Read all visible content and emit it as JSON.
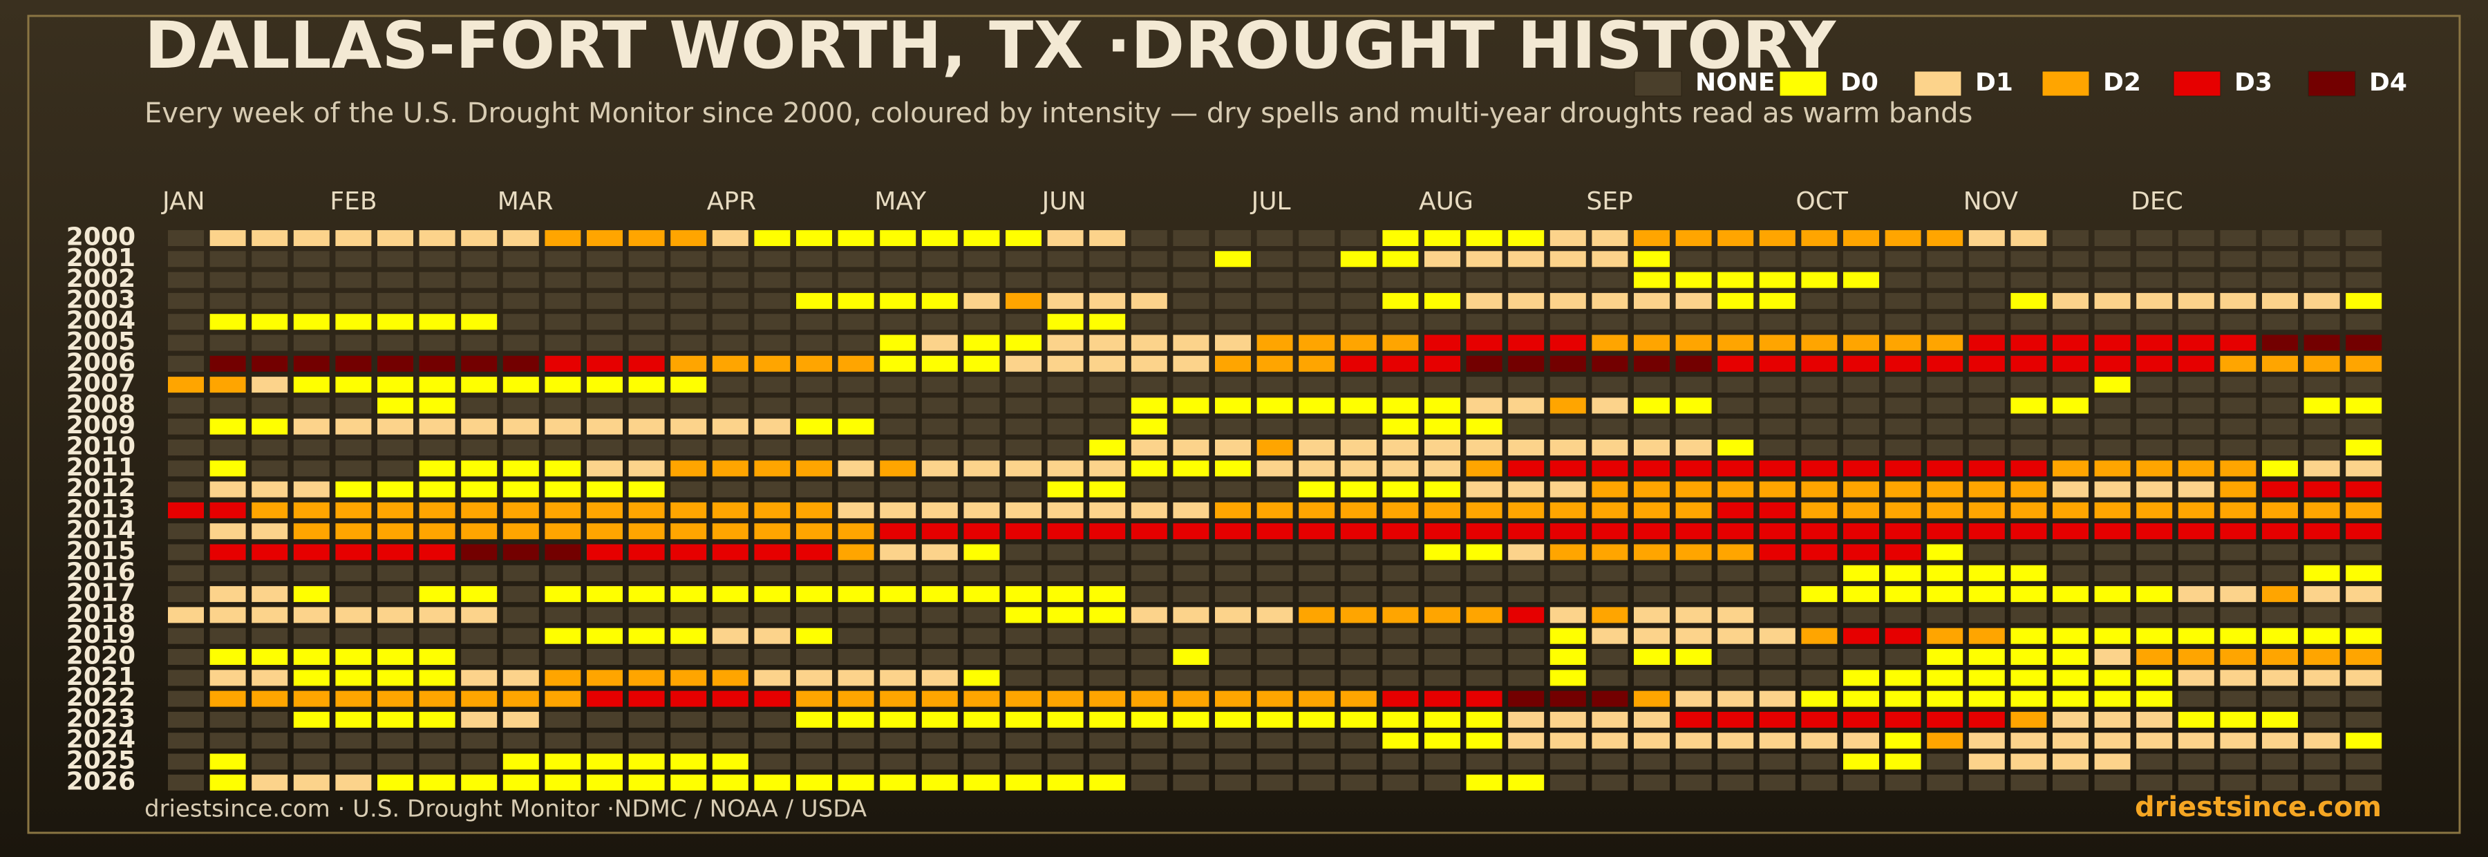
{
  "chart_data": {
    "type": "heatmap",
    "title": "DALLAS-FORT WORTH, TX ·DROUGHT HISTORY",
    "subtitle": "Every week of the U.S. Drought Monitor since 2000, coloured by intensity — dry spells and multi-year droughts read as warm bands",
    "source": "driestsince.com  · U.S. Drought Monitor ·NDMC / NOAA / USDA",
    "brand": "driestsince.com",
    "levels": [
      {
        "name": "NONE",
        "color": "#4a3f2b"
      },
      {
        "name": "D0",
        "color": "#ffff00"
      },
      {
        "name": "D1",
        "color": "#fcd38b"
      },
      {
        "name": "D2",
        "color": "#ffa500"
      },
      {
        "name": "D3",
        "color": "#e60000"
      },
      {
        "name": "D4",
        "color": "#730000"
      }
    ],
    "x_categories": [
      "JAN",
      null,
      null,
      null,
      "FEB",
      null,
      null,
      null,
      "MAR",
      null,
      null,
      null,
      null,
      "APR",
      null,
      null,
      null,
      "MAY",
      null,
      null,
      null,
      "JUN",
      null,
      null,
      null,
      null,
      "JUL",
      null,
      null,
      null,
      "AUG",
      null,
      null,
      null,
      "SEP",
      null,
      null,
      null,
      null,
      "OCT",
      null,
      null,
      null,
      "NOV",
      null,
      null,
      null,
      "DEC",
      null,
      null,
      null,
      null,
      null
    ],
    "y_categories": [
      "2000",
      "2001",
      "2002",
      "2003",
      "2004",
      "2005",
      "2006",
      "2007",
      "2008",
      "2009",
      "2010",
      "2011",
      "2012",
      "2013",
      "2014",
      "2015",
      "2016",
      "2017",
      "2018",
      "2019",
      "2020",
      "2021",
      "2022",
      "2023",
      "2024",
      "2025",
      "2026"
    ],
    "values": [
      [
        0,
        2,
        2,
        2,
        2,
        2,
        2,
        2,
        2,
        3,
        3,
        3,
        3,
        2,
        1,
        1,
        1,
        1,
        1,
        1,
        1,
        2,
        2,
        0,
        0,
        0,
        0,
        0,
        0,
        1,
        1,
        1,
        1,
        2,
        2,
        3,
        3,
        3,
        3,
        3,
        3,
        3,
        3,
        2,
        2,
        0,
        0,
        0,
        0,
        0,
        0,
        0,
        0
      ],
      [
        0,
        0,
        0,
        0,
        0,
        0,
        0,
        0,
        0,
        0,
        0,
        0,
        0,
        0,
        0,
        0,
        0,
        0,
        0,
        0,
        0,
        0,
        0,
        0,
        0,
        1,
        0,
        0,
        1,
        1,
        2,
        2,
        2,
        2,
        2,
        1,
        0,
        0,
        0,
        0,
        0,
        0,
        0,
        0,
        0,
        0,
        0,
        0,
        0,
        0,
        0,
        0,
        0
      ],
      [
        0,
        0,
        0,
        0,
        0,
        0,
        0,
        0,
        0,
        0,
        0,
        0,
        0,
        0,
        0,
        0,
        0,
        0,
        0,
        0,
        0,
        0,
        0,
        0,
        0,
        0,
        0,
        0,
        0,
        0,
        0,
        0,
        0,
        0,
        0,
        1,
        1,
        1,
        1,
        1,
        1,
        0,
        0,
        0,
        0,
        0,
        0,
        0,
        0,
        0,
        0,
        0,
        0
      ],
      [
        0,
        0,
        0,
        0,
        0,
        0,
        0,
        0,
        0,
        0,
        0,
        0,
        0,
        0,
        0,
        1,
        1,
        1,
        1,
        2,
        3,
        2,
        2,
        2,
        0,
        0,
        0,
        0,
        0,
        1,
        1,
        2,
        2,
        2,
        2,
        2,
        2,
        1,
        1,
        0,
        0,
        0,
        0,
        0,
        1,
        2,
        2,
        2,
        2,
        2,
        2,
        2,
        1
      ],
      [
        0,
        1,
        1,
        1,
        1,
        1,
        1,
        1,
        0,
        0,
        0,
        0,
        0,
        0,
        0,
        0,
        0,
        0,
        0,
        0,
        0,
        1,
        1,
        0,
        0,
        0,
        0,
        0,
        0,
        0,
        0,
        0,
        0,
        0,
        0,
        0,
        0,
        0,
        0,
        0,
        0,
        0,
        0,
        0,
        0,
        0,
        0,
        0,
        0,
        0,
        0,
        0,
        0
      ],
      [
        0,
        0,
        0,
        0,
        0,
        0,
        0,
        0,
        0,
        0,
        0,
        0,
        0,
        0,
        0,
        0,
        0,
        1,
        2,
        1,
        1,
        2,
        2,
        2,
        2,
        2,
        3,
        3,
        3,
        3,
        4,
        4,
        4,
        4,
        3,
        3,
        3,
        3,
        3,
        3,
        3,
        3,
        3,
        4,
        4,
        4,
        4,
        4,
        4,
        4,
        5,
        5,
        5
      ],
      [
        0,
        5,
        5,
        5,
        5,
        5,
        5,
        5,
        5,
        4,
        4,
        4,
        3,
        3,
        3,
        3,
        3,
        1,
        1,
        1,
        2,
        2,
        2,
        2,
        2,
        3,
        3,
        3,
        4,
        4,
        4,
        5,
        5,
        5,
        5,
        5,
        5,
        4,
        4,
        4,
        4,
        4,
        4,
        4,
        4,
        4,
        4,
        4,
        4,
        3,
        3,
        3,
        3
      ],
      [
        3,
        3,
        2,
        1,
        1,
        1,
        1,
        1,
        1,
        1,
        1,
        1,
        1,
        0,
        0,
        0,
        0,
        0,
        0,
        0,
        0,
        0,
        0,
        0,
        0,
        0,
        0,
        0,
        0,
        0,
        0,
        0,
        0,
        0,
        0,
        0,
        0,
        0,
        0,
        0,
        0,
        0,
        0,
        0,
        0,
        0,
        1,
        0,
        0,
        0,
        0,
        0,
        0
      ],
      [
        0,
        0,
        0,
        0,
        0,
        1,
        1,
        0,
        0,
        0,
        0,
        0,
        0,
        0,
        0,
        0,
        0,
        0,
        0,
        0,
        0,
        0,
        0,
        1,
        1,
        1,
        1,
        1,
        1,
        1,
        1,
        2,
        2,
        3,
        2,
        1,
        1,
        0,
        0,
        0,
        0,
        0,
        0,
        0,
        1,
        1,
        0,
        0,
        0,
        0,
        0,
        1,
        1
      ],
      [
        0,
        1,
        1,
        2,
        2,
        2,
        2,
        2,
        2,
        2,
        2,
        2,
        2,
        2,
        2,
        1,
        1,
        0,
        0,
        0,
        0,
        0,
        0,
        1,
        0,
        0,
        0,
        0,
        0,
        1,
        1,
        1,
        0,
        0,
        0,
        0,
        0,
        0,
        0,
        0,
        0,
        0,
        0,
        0,
        0,
        0,
        0,
        0,
        0,
        0,
        0,
        0,
        0
      ],
      [
        0,
        0,
        0,
        0,
        0,
        0,
        0,
        0,
        0,
        0,
        0,
        0,
        0,
        0,
        0,
        0,
        0,
        0,
        0,
        0,
        0,
        0,
        1,
        2,
        2,
        2,
        3,
        2,
        2,
        2,
        2,
        2,
        2,
        2,
        2,
        2,
        2,
        1,
        0,
        0,
        0,
        0,
        0,
        0,
        0,
        0,
        0,
        0,
        0,
        0,
        0,
        0,
        1
      ],
      [
        0,
        1,
        0,
        0,
        0,
        0,
        1,
        1,
        1,
        1,
        2,
        2,
        3,
        3,
        3,
        3,
        2,
        3,
        2,
        2,
        2,
        2,
        2,
        1,
        1,
        1,
        2,
        2,
        2,
        2,
        2,
        3,
        4,
        4,
        4,
        4,
        4,
        4,
        4,
        4,
        4,
        4,
        4,
        4,
        4,
        3,
        3,
        3,
        3,
        3,
        1,
        2,
        2
      ],
      [
        0,
        2,
        2,
        2,
        1,
        1,
        1,
        1,
        1,
        1,
        1,
        1,
        0,
        0,
        0,
        0,
        0,
        0,
        0,
        0,
        0,
        1,
        1,
        0,
        0,
        0,
        0,
        1,
        1,
        1,
        1,
        2,
        2,
        2,
        3,
        3,
        3,
        3,
        3,
        3,
        3,
        3,
        3,
        3,
        3,
        2,
        2,
        2,
        2,
        3,
        4,
        4,
        4
      ],
      [
        4,
        4,
        3,
        3,
        3,
        3,
        3,
        3,
        3,
        3,
        3,
        3,
        3,
        3,
        3,
        3,
        2,
        2,
        2,
        2,
        2,
        2,
        2,
        2,
        2,
        3,
        3,
        3,
        3,
        3,
        3,
        3,
        3,
        3,
        3,
        3,
        3,
        4,
        4,
        3,
        3,
        3,
        3,
        3,
        3,
        3,
        3,
        3,
        3,
        3,
        3,
        3,
        3
      ],
      [
        0,
        2,
        2,
        3,
        3,
        3,
        3,
        3,
        3,
        3,
        3,
        3,
        3,
        3,
        3,
        3,
        3,
        4,
        4,
        4,
        4,
        4,
        4,
        4,
        4,
        4,
        4,
        4,
        4,
        4,
        4,
        4,
        4,
        4,
        4,
        4,
        4,
        4,
        4,
        4,
        4,
        4,
        4,
        4,
        4,
        4,
        4,
        4,
        4,
        4,
        4,
        4,
        4
      ],
      [
        0,
        4,
        4,
        4,
        4,
        4,
        4,
        5,
        5,
        5,
        4,
        4,
        4,
        4,
        4,
        4,
        3,
        2,
        2,
        1,
        0,
        0,
        0,
        0,
        0,
        0,
        0,
        0,
        0,
        0,
        1,
        1,
        2,
        3,
        3,
        3,
        3,
        3,
        4,
        4,
        4,
        4,
        1,
        0,
        0,
        0,
        0,
        0,
        0,
        0,
        0,
        0,
        0
      ],
      [
        0,
        0,
        0,
        0,
        0,
        0,
        0,
        0,
        0,
        0,
        0,
        0,
        0,
        0,
        0,
        0,
        0,
        0,
        0,
        0,
        0,
        0,
        0,
        0,
        0,
        0,
        0,
        0,
        0,
        0,
        0,
        0,
        0,
        0,
        0,
        0,
        0,
        0,
        0,
        0,
        1,
        1,
        1,
        1,
        1,
        0,
        0,
        0,
        0,
        0,
        0,
        1,
        1
      ],
      [
        0,
        2,
        2,
        1,
        0,
        0,
        1,
        1,
        0,
        1,
        1,
        1,
        1,
        1,
        1,
        1,
        1,
        1,
        1,
        1,
        1,
        1,
        1,
        0,
        0,
        0,
        0,
        0,
        0,
        0,
        0,
        0,
        0,
        0,
        0,
        0,
        0,
        0,
        0,
        1,
        1,
        1,
        1,
        1,
        1,
        1,
        1,
        1,
        2,
        2,
        3,
        2,
        2
      ],
      [
        2,
        2,
        2,
        2,
        2,
        2,
        2,
        2,
        0,
        0,
        0,
        0,
        0,
        0,
        0,
        0,
        0,
        0,
        0,
        0,
        1,
        1,
        1,
        2,
        2,
        2,
        2,
        3,
        3,
        3,
        3,
        3,
        4,
        2,
        3,
        2,
        2,
        2,
        0,
        0,
        0,
        0,
        0,
        0,
        0,
        0,
        0,
        0,
        0,
        0,
        0,
        0,
        0
      ],
      [
        0,
        0,
        0,
        0,
        0,
        0,
        0,
        0,
        0,
        1,
        1,
        1,
        1,
        2,
        2,
        1,
        0,
        0,
        0,
        0,
        0,
        0,
        0,
        0,
        0,
        0,
        0,
        0,
        0,
        0,
        0,
        0,
        0,
        1,
        2,
        2,
        2,
        2,
        2,
        3,
        4,
        4,
        3,
        3,
        1,
        1,
        1,
        1,
        1,
        1,
        1,
        1,
        1
      ],
      [
        0,
        1,
        1,
        1,
        1,
        1,
        1,
        0,
        0,
        0,
        0,
        0,
        0,
        0,
        0,
        0,
        0,
        0,
        0,
        0,
        0,
        0,
        0,
        0,
        1,
        0,
        0,
        0,
        0,
        0,
        0,
        0,
        0,
        1,
        0,
        1,
        1,
        0,
        0,
        0,
        0,
        0,
        1,
        1,
        1,
        1,
        2,
        3,
        3,
        3,
        3,
        3,
        3
      ],
      [
        0,
        2,
        2,
        1,
        1,
        1,
        1,
        2,
        2,
        3,
        3,
        3,
        3,
        3,
        2,
        2,
        2,
        2,
        2,
        1,
        0,
        0,
        0,
        0,
        0,
        0,
        0,
        0,
        0,
        0,
        0,
        0,
        0,
        1,
        0,
        0,
        0,
        0,
        0,
        0,
        1,
        1,
        1,
        1,
        1,
        1,
        1,
        1,
        2,
        2,
        2,
        2,
        2
      ],
      [
        0,
        3,
        3,
        3,
        3,
        3,
        3,
        3,
        3,
        3,
        4,
        4,
        4,
        4,
        4,
        3,
        3,
        3,
        3,
        3,
        3,
        3,
        3,
        3,
        3,
        3,
        3,
        3,
        3,
        4,
        4,
        4,
        5,
        5,
        5,
        3,
        2,
        2,
        2,
        1,
        1,
        1,
        1,
        1,
        1,
        1,
        1,
        1,
        0,
        0,
        0,
        0,
        0
      ],
      [
        0,
        0,
        0,
        1,
        1,
        1,
        1,
        2,
        2,
        0,
        0,
        0,
        0,
        0,
        0,
        1,
        1,
        1,
        1,
        1,
        1,
        1,
        1,
        1,
        1,
        1,
        1,
        1,
        1,
        1,
        1,
        1,
        2,
        2,
        2,
        2,
        4,
        4,
        4,
        4,
        4,
        4,
        4,
        4,
        3,
        2,
        2,
        2,
        1,
        1,
        1,
        0,
        0
      ],
      [
        0,
        0,
        0,
        0,
        0,
        0,
        0,
        0,
        0,
        0,
        0,
        0,
        0,
        0,
        0,
        0,
        0,
        0,
        0,
        0,
        0,
        0,
        0,
        0,
        0,
        0,
        0,
        0,
        0,
        1,
        1,
        1,
        2,
        2,
        2,
        2,
        2,
        2,
        2,
        2,
        2,
        1,
        3,
        2,
        2,
        2,
        2,
        2,
        2,
        2,
        2,
        2,
        1
      ],
      [
        0,
        1,
        0,
        0,
        0,
        0,
        0,
        0,
        1,
        1,
        1,
        1,
        1,
        1,
        0,
        0,
        0,
        0,
        0,
        0,
        0,
        0,
        0,
        0,
        0,
        0,
        0,
        0,
        0,
        0,
        0,
        0,
        0,
        0,
        0,
        0,
        0,
        0,
        0,
        0,
        1,
        1,
        0,
        2,
        2,
        2,
        2,
        0,
        0,
        0,
        0,
        0,
        0
      ],
      [
        0,
        1,
        2,
        2,
        2,
        1,
        1,
        1,
        1,
        1,
        1,
        1,
        1,
        1,
        1,
        1,
        1,
        1,
        1,
        1,
        1,
        1,
        1,
        0,
        0,
        0,
        0,
        0,
        0,
        0,
        0,
        1,
        1,
        0,
        0,
        0,
        0,
        0,
        0,
        0,
        0,
        0,
        0,
        0,
        0,
        0,
        0,
        0,
        0,
        0,
        0,
        0,
        0
      ]
    ]
  }
}
